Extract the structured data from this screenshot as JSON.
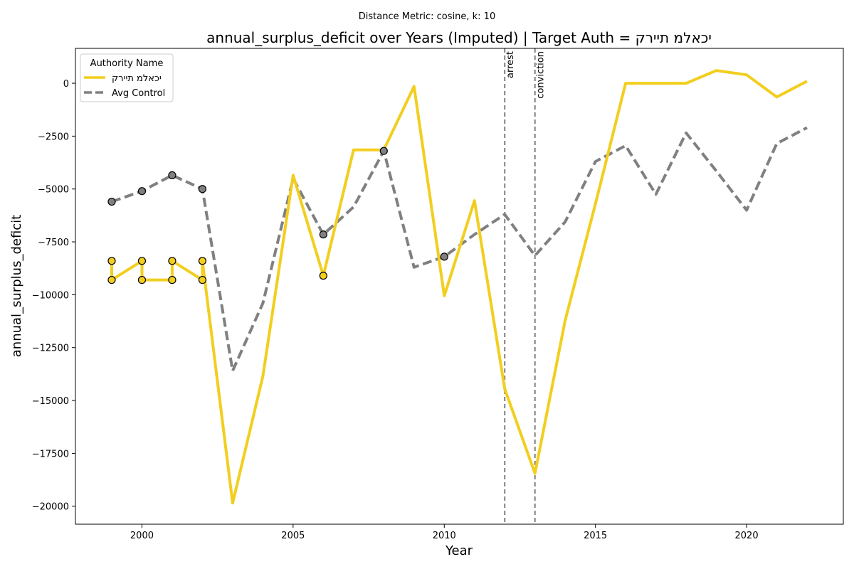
{
  "chart_data": {
    "type": "line",
    "suptitle": "Distance Metric: cosine, k: 10",
    "title": "annual_surplus_deficit over Years (Imputed) | Target Auth = יכאלמ תיירק",
    "xlabel": "Year",
    "ylabel": "annual_surplus_deficit",
    "xlim": [
      1997.8,
      2023.2
    ],
    "ylim": [
      -20850,
      1650
    ],
    "xticks": [
      2000,
      2005,
      2010,
      2015,
      2020
    ],
    "yticks": [
      0,
      -2500,
      -5000,
      -7500,
      -10000,
      -12500,
      -15000,
      -17500,
      -20000
    ],
    "grid": false,
    "legend": {
      "title": "Authority Name",
      "placement": "top-left"
    },
    "colors": {
      "target": "#f2ce1f",
      "control": "#808080",
      "event_line": "#808080",
      "marker_edge": "#000000"
    },
    "series": [
      {
        "name": "יכאלמ תיירק",
        "style": "solid",
        "color": "#f2ce1f",
        "points": [
          [
            1999,
            -8400
          ],
          [
            1999,
            -9300
          ],
          [
            2000,
            -8400
          ],
          [
            2000,
            -9300
          ],
          [
            2001,
            -9300
          ],
          [
            2001,
            -8400
          ],
          [
            2002,
            -9300
          ],
          [
            2002,
            -8400
          ],
          [
            2003,
            -19850
          ],
          [
            2004,
            -13850
          ],
          [
            2005,
            -4350
          ],
          [
            2006,
            -9100
          ],
          [
            2007,
            -3150
          ],
          [
            2008,
            -3150
          ],
          [
            2009,
            -150
          ],
          [
            2010,
            -10050
          ],
          [
            2011,
            -5550
          ],
          [
            2012,
            -14450
          ],
          [
            2013,
            -18450
          ],
          [
            2014,
            -11200
          ],
          [
            2015,
            -5700
          ],
          [
            2016,
            0
          ],
          [
            2017,
            0
          ],
          [
            2018,
            0
          ],
          [
            2019,
            600
          ],
          [
            2020,
            400
          ],
          [
            2021,
            -650
          ],
          [
            2022,
            100
          ]
        ],
        "imputed_markers": [
          [
            1999,
            -8400
          ],
          [
            1999,
            -9300
          ],
          [
            2000,
            -8400
          ],
          [
            2000,
            -9300
          ],
          [
            2001,
            -8400
          ],
          [
            2001,
            -9300
          ],
          [
            2002,
            -8400
          ],
          [
            2002,
            -9300
          ],
          [
            2006,
            -9100
          ]
        ]
      },
      {
        "name": "Avg Control",
        "style": "dashed",
        "color": "#808080",
        "points": [
          [
            1999,
            -5600
          ],
          [
            2000,
            -5100
          ],
          [
            2001,
            -4350
          ],
          [
            2002,
            -5000
          ],
          [
            2003,
            -13600
          ],
          [
            2004,
            -10400
          ],
          [
            2005,
            -4500
          ],
          [
            2006,
            -7150
          ],
          [
            2007,
            -5850
          ],
          [
            2008,
            -3200
          ],
          [
            2009,
            -8700
          ],
          [
            2010,
            -8200
          ],
          [
            2011,
            -7150
          ],
          [
            2012,
            -6200
          ],
          [
            2013,
            -8150
          ],
          [
            2014,
            -6550
          ],
          [
            2015,
            -3700
          ],
          [
            2016,
            -2950
          ],
          [
            2017,
            -5250
          ],
          [
            2018,
            -2350
          ],
          [
            2019,
            -4150
          ],
          [
            2020,
            -6000
          ],
          [
            2021,
            -2850
          ],
          [
            2022,
            -2100
          ]
        ],
        "imputed_markers": [
          [
            1999,
            -5600
          ],
          [
            2000,
            -5100
          ],
          [
            2001,
            -4350
          ],
          [
            2002,
            -5000
          ],
          [
            2006,
            -7150
          ],
          [
            2008,
            -3200
          ],
          [
            2010,
            -8200
          ]
        ]
      }
    ],
    "events": [
      {
        "label": "arrest",
        "x": 2012
      },
      {
        "label": "conviction",
        "x": 2013
      }
    ]
  }
}
